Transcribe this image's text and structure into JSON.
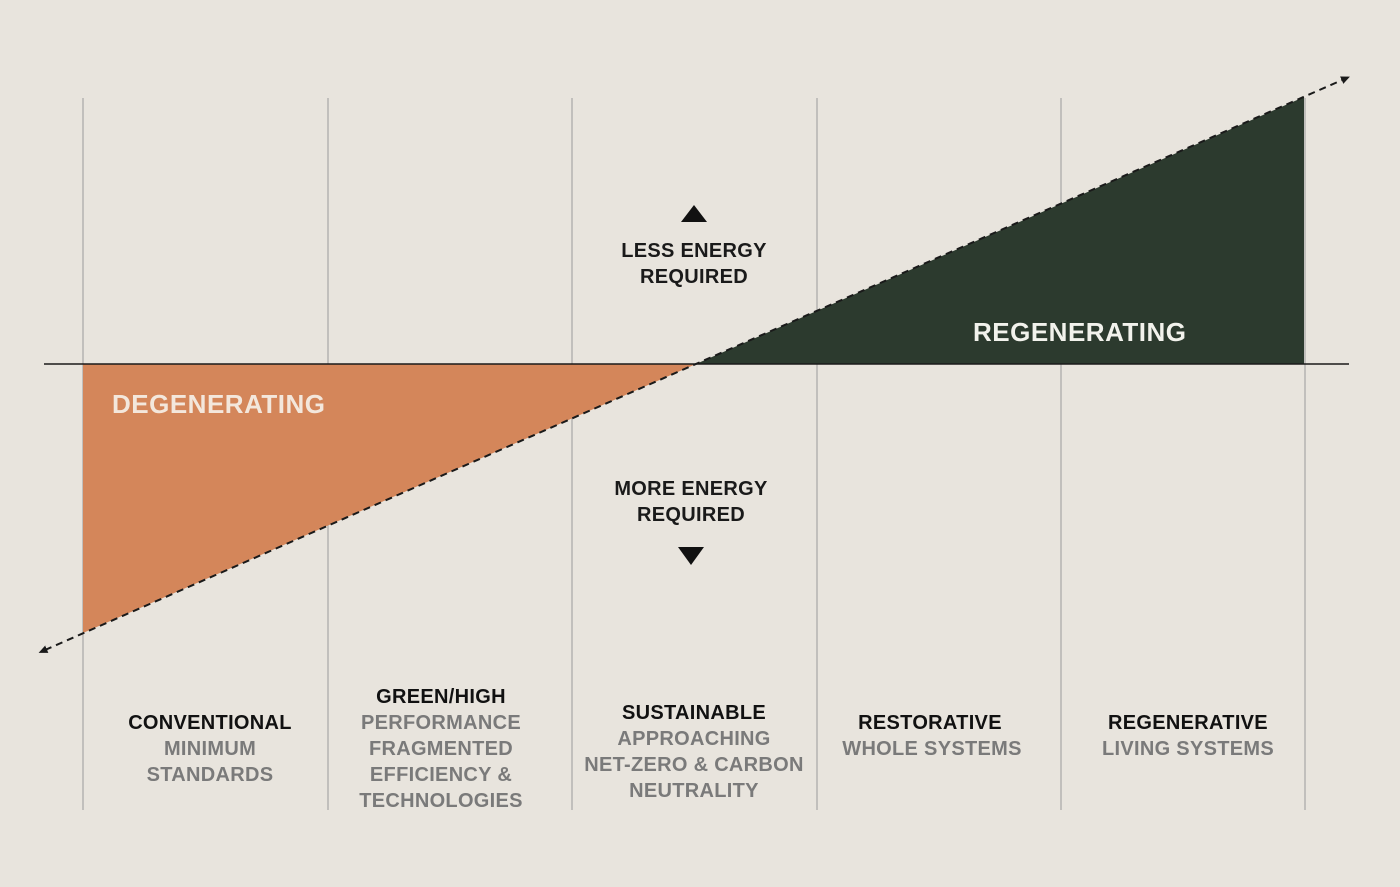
{
  "colors": {
    "background": "#e8e4dd",
    "degenerating_fill": "#d4865a",
    "regenerating_fill": "#2c3a2e",
    "gridline": "#9a9a9a",
    "axis_line": "#1a1a1a",
    "title_text": "#111111",
    "sub_text": "#7a7a7a",
    "degenerating_label": "#f3e7dc",
    "regenerating_label": "#f2f2ec"
  },
  "regions": {
    "degenerating": "DEGENERATING",
    "regenerating": "REGENERATING"
  },
  "energy": {
    "less": [
      "LESS ENERGY",
      "REQUIRED"
    ],
    "more": [
      "MORE ENERGY",
      "REQUIRED"
    ]
  },
  "categories": [
    {
      "title": [
        "CONVENTIONAL"
      ],
      "sub": [
        "MINIMUM",
        "STANDARDS"
      ]
    },
    {
      "title": [
        "GREEN/HIGH"
      ],
      "sub": [
        "PERFORMANCE",
        "FRAGMENTED",
        "EFFICIENCY &",
        "TECHNOLOGIES"
      ]
    },
    {
      "title": [
        "SUSTAINABLE"
      ],
      "sub": [
        "APPROACHING",
        "NET-ZERO & CARBON",
        "NEUTRALITY"
      ]
    },
    {
      "title": [
        "RESTORATIVE"
      ],
      "sub": [
        "WHOLE SYSTEMS"
      ]
    },
    {
      "title": [
        "REGENERATIVE"
      ],
      "sub": [
        "LIVING SYSTEMS"
      ]
    }
  ]
}
